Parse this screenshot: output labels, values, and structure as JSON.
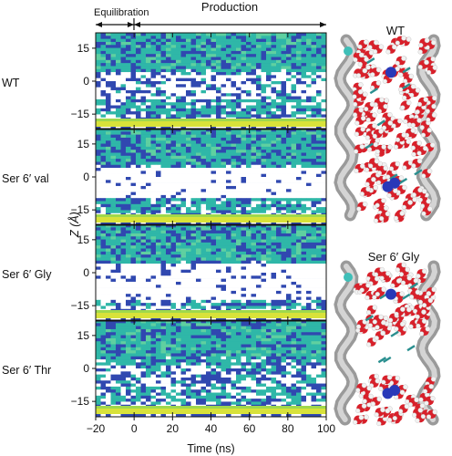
{
  "figure": {
    "phases": {
      "equilibration": "Equilibration",
      "production": "Production"
    },
    "y_axis_label": "Z (Å)",
    "x_axis_label": "Time (ns)",
    "snapshots": [
      {
        "title": "WT"
      },
      {
        "title": "Ser 6′ Gly"
      }
    ]
  },
  "chart_data": {
    "type": "heatmap",
    "xlabel": "Time (ns)",
    "ylabel": "Z (Å)",
    "x_ticks": [
      -20,
      0,
      20,
      40,
      60,
      80,
      100
    ],
    "xlim": [
      -20,
      100
    ],
    "y_ticks": [
      15,
      0,
      -15
    ],
    "ylim": [
      -22,
      22
    ],
    "phase_boundary_ns": 0,
    "colormap": [
      "#ffffff",
      "#3048b0",
      "#2fb7a8",
      "#d8e23a"
    ],
    "panels": [
      {
        "name": "WT"
      },
      {
        "name": "Ser 6′ val"
      },
      {
        "name": "Ser 6′ Gly"
      },
      {
        "name": "Ser 6′ Thr"
      }
    ]
  }
}
